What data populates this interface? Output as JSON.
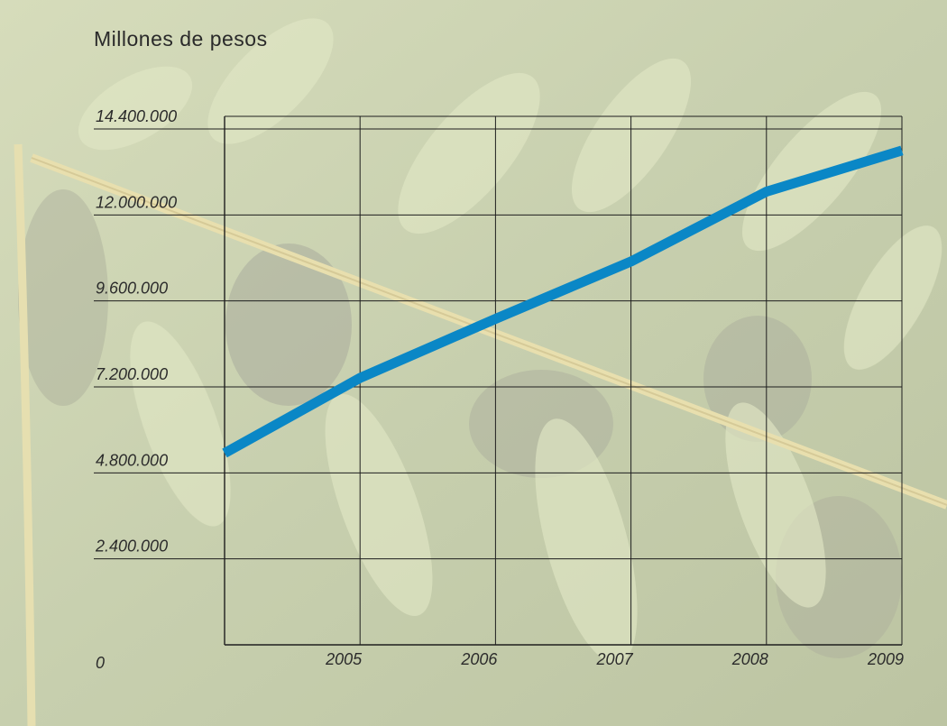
{
  "chart_data": {
    "type": "line",
    "title": "Millones de pesos",
    "xlabel": "",
    "ylabel": "",
    "x_tick_labels": [
      "2005",
      "2006",
      "2007",
      "2008",
      "2009"
    ],
    "y_tick_labels": [
      "0",
      "2.400.000",
      "4.800.000",
      "7.200.000",
      "9.600.000",
      "12.000.000",
      "14.400.000"
    ],
    "ylim": [
      0,
      14400000
    ],
    "xlim": [
      2004,
      2009
    ],
    "grid": true,
    "series": [
      {
        "x": [
          2004,
          2005,
          2006,
          2007,
          2008,
          2009
        ],
        "values": [
          5350000,
          7450000,
          9100000,
          10700000,
          12650000,
          13800000
        ]
      }
    ],
    "colors": {
      "line": "#0a87c6",
      "grid": "#1e1e1e",
      "tick_text": "#2b2b2b"
    }
  }
}
